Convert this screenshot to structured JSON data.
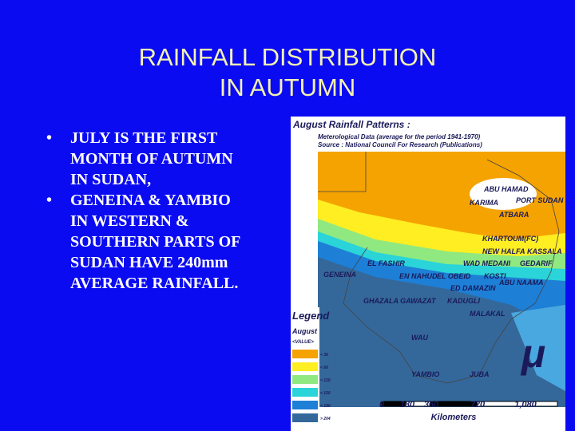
{
  "title": [
    "RAINFALL DISTRIBUTION",
    "IN AUTUMN"
  ],
  "bullets": [
    [
      "JULY IS THE FIRST",
      "MONTH OF AUTUMN",
      "IN SUDAN,"
    ],
    [
      "GENEINA & YAMBIO",
      "IN WESTERN &",
      "SOUTHERN PARTS OF",
      "SUDAN HAVE 240mm",
      "AVERAGE RAINFALL."
    ]
  ],
  "bullet_symbol": "•",
  "map": {
    "title": "August Rainfall Patterns :",
    "source": [
      "Meterological Data (average for the period 1941-1970)",
      "Source : National Council For Research (Publications)"
    ],
    "places": [
      "ABU HAMAD",
      "KARIMA",
      "PORT SUDAN",
      "ATBARA",
      "KHARTOUM(FC)",
      "NEW HALFA",
      "KASSALA",
      "EL FASHIR",
      "WAD MEDANI",
      "GEDARIF",
      "GENEINA",
      "EN NAHUD",
      "EL OBEID",
      "KOSTI",
      "ED DAMAZIN",
      "ABU NAAMA",
      "GHAZALA GAWAZAT",
      "KADUGLI",
      "MALAKAL",
      "WAU",
      "YAMBIO",
      "JUBA"
    ],
    "legend": {
      "title": "Legend",
      "layer": "August",
      "field": "<VALUE>",
      "classes": [
        "< 36",
        "< 60",
        "< 120",
        "< 150",
        "< 180",
        "> 204"
      ]
    },
    "scale": {
      "ticks": [
        "0",
        "180",
        "360",
        "720",
        "1,080"
      ],
      "unit": "Kilometers"
    },
    "north": "μ"
  }
}
